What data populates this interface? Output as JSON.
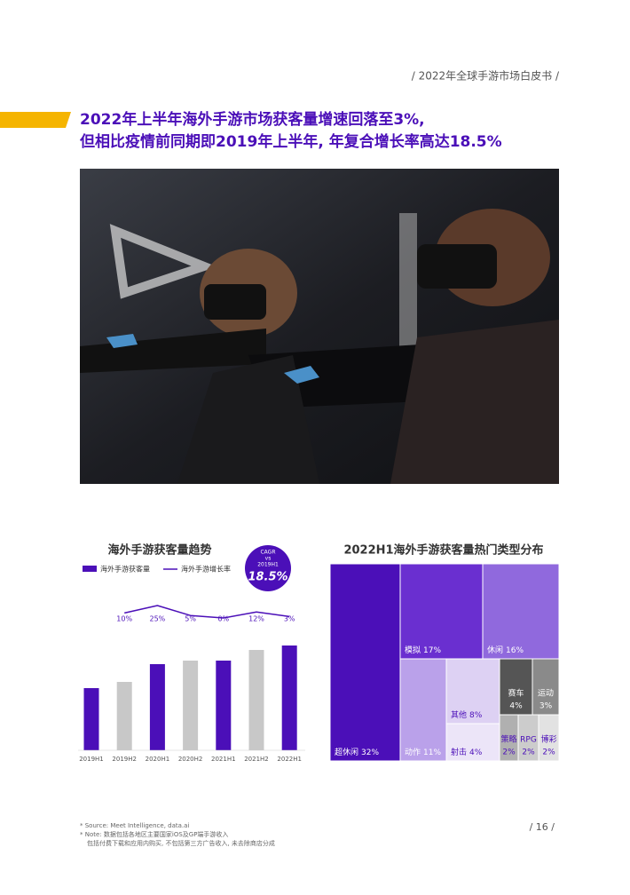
{
  "header": "/ 2022年全球手游市场白皮书 /",
  "title": [
    "2022年上半年海外手游市场获客量增速回落至3%,",
    "但相比疫情前同期即2019年上半年, 年复合增长率高达18.5%"
  ],
  "chart_data": [
    {
      "type": "bar",
      "title": "海外手游获客量趋势",
      "categories": [
        "2019H1",
        "2019H2",
        "2020H1",
        "2020H2",
        "2021H1",
        "2021H2",
        "2022H1"
      ],
      "ylim": [
        0,
        130
      ],
      "y2lim": [
        0,
        25
      ],
      "series": [
        {
          "name": "海外手游获客量",
          "color": "#4b0fb8",
          "colors": [
            "#4b0fb8",
            "#c8c8c8",
            "#4b0fb8",
            "#c8c8c8",
            "#4b0fb8",
            "#c8c8c8",
            "#4b0fb8"
          ],
          "values": [
            70,
            77,
            97,
            101,
            101,
            113,
            118
          ]
        },
        {
          "name": "海外手游增长率",
          "color": "#4b0fb8",
          "axis": "y2",
          "values": [
            null,
            10,
            25,
            5,
            0,
            12,
            3
          ],
          "value_labels": [
            null,
            "10%",
            "25%",
            "5%",
            "0%",
            "12%",
            "3%"
          ]
        }
      ],
      "badge": {
        "lines": [
          "CAGR",
          "vs",
          "2019H1"
        ],
        "value": "18.5%"
      }
    },
    {
      "type": "treemap",
      "title": "2022H1海外手游获客量热门类型分布",
      "categories": [
        "超休闲",
        "模拟",
        "休闲",
        "动作",
        "其他",
        "射击",
        "赛车",
        "运动",
        "策略",
        "RPG",
        "博彩"
      ],
      "values": [
        32,
        17,
        16,
        11,
        8,
        4,
        4,
        3,
        2,
        2,
        2
      ],
      "value_labels": [
        "32%",
        "17%",
        "16%",
        "11%",
        "8%",
        "4%",
        "4%",
        "3%",
        "2%",
        "2%",
        "2%"
      ],
      "colors": [
        "#4b0fb8",
        "#6a2fd0",
        "#9069dd",
        "#baa1ea",
        "#ddd1f3",
        "#ece5f8",
        "#555555",
        "#8a8a8a",
        "#b0b0b0",
        "#cccccc",
        "#e2e2e2"
      ]
    }
  ],
  "footer": {
    "notes": [
      "* Source: Meet Intelligence, data.ai",
      "* Note: 数据包括各地区主要国家iOS及GP端手游收入",
      "包括付费下载和应用内购买, 不包括第三方广告收入, 未去除商店分成"
    ],
    "page": "/ 16 /"
  }
}
